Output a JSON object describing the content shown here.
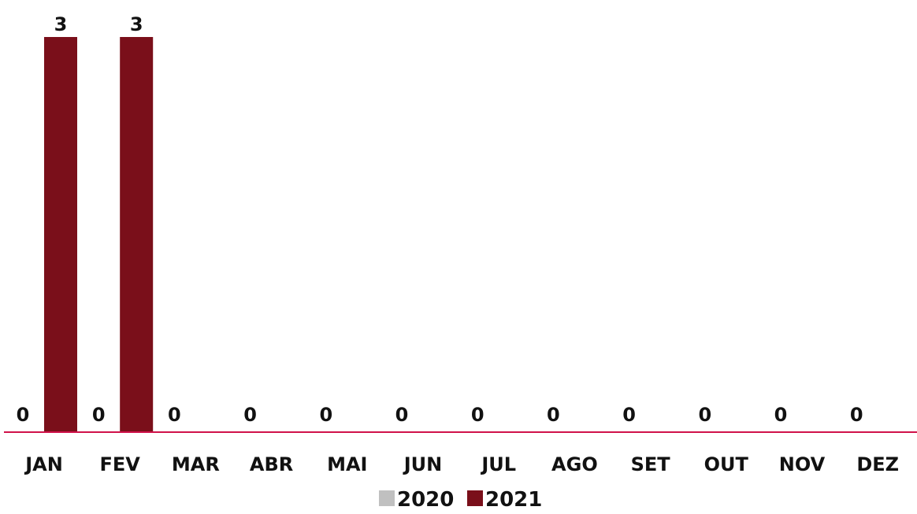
{
  "chart_data": {
    "type": "bar",
    "categories": [
      "JAN",
      "FEV",
      "MAR",
      "ABR",
      "MAI",
      "JUN",
      "JUL",
      "AGO",
      "SET",
      "OUT",
      "NOV",
      "DEZ"
    ],
    "series": [
      {
        "name": "2020",
        "color": "#c0c0c0",
        "values": [
          0,
          0,
          0,
          0,
          0,
          0,
          0,
          0,
          0,
          0,
          0,
          0
        ]
      },
      {
        "name": "2021",
        "color": "#7a0f1a",
        "values": [
          3,
          3,
          0,
          0,
          0,
          0,
          0,
          0,
          0,
          0,
          0,
          0
        ]
      }
    ],
    "title": "",
    "xlabel": "",
    "ylabel": "",
    "ylim": [
      0,
      3
    ],
    "grid": false,
    "axis_color": "#d0124a",
    "data_labels": true,
    "legend_position": "bottom-center"
  }
}
